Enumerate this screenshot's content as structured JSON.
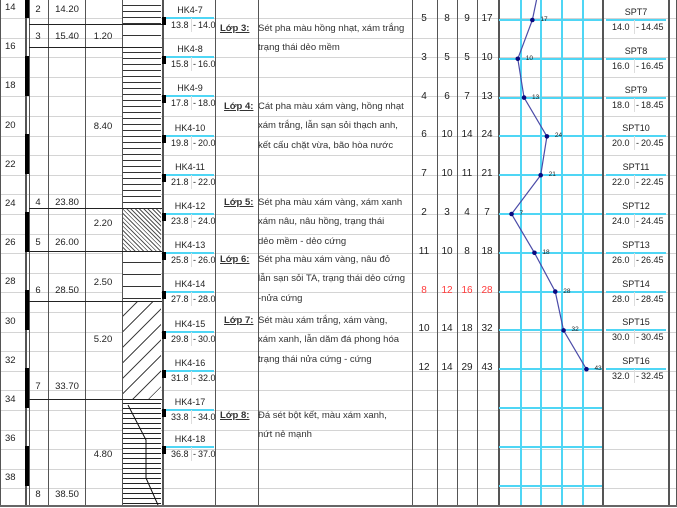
{
  "depth_labels": [
    "14",
    "16",
    "18",
    "20",
    "22",
    "24",
    "26",
    "28",
    "30",
    "32",
    "34",
    "36",
    "38"
  ],
  "layers": [
    {
      "no": "2",
      "bottom": "14.20"
    },
    {
      "no": "3",
      "bottom": "15.40"
    },
    {
      "no": "4",
      "bottom": "23.80"
    },
    {
      "no": "5",
      "bottom": "26.00"
    },
    {
      "no": "6",
      "bottom": "28.50"
    },
    {
      "no": "7",
      "bottom": "33.70"
    },
    {
      "no": "8",
      "bottom": "38.50"
    }
  ],
  "thicknesses": [
    "1.20",
    "8.40",
    "2.20",
    "2.50",
    "5.20",
    "4.80"
  ],
  "samples": [
    {
      "name": "HK4-7",
      "from": "13.8",
      "to": "14.0"
    },
    {
      "name": "HK4-8",
      "from": "15.8",
      "to": "16.0"
    },
    {
      "name": "HK4-9",
      "from": "17.8",
      "to": "18.0"
    },
    {
      "name": "HK4-10",
      "from": "19.8",
      "to": "20.0"
    },
    {
      "name": "HK4-11",
      "from": "21.8",
      "to": "22.0"
    },
    {
      "name": "HK4-12",
      "from": "23.8",
      "to": "24.0"
    },
    {
      "name": "HK4-13",
      "from": "25.8",
      "to": "26.0"
    },
    {
      "name": "HK4-14",
      "from": "27.8",
      "to": "28.0"
    },
    {
      "name": "HK4-15",
      "from": "29.8",
      "to": "30.0"
    },
    {
      "name": "HK4-16",
      "from": "31.8",
      "to": "32.0"
    },
    {
      "name": "HK4-17",
      "from": "33.8",
      "to": "34.0"
    },
    {
      "name": "HK4-18",
      "from": "36.8",
      "to": "37.0"
    }
  ],
  "descriptions": [
    {
      "label": "Lớp 3:",
      "lines": [
        "Sét pha màu hồng nhạt, xám trắng",
        "trạng thái dẻo mềm"
      ]
    },
    {
      "label": "Lớp 4:",
      "lines": [
        "Cát pha màu xám vàng, hồng nhạt",
        "xám trắng, lẫn sạn sỏi thạch anh,",
        "kết cấu chặt vừa, bão hòa nước"
      ]
    },
    {
      "label": "Lớp 5:",
      "lines": [
        "Sét pha màu xám vàng, xám xanh",
        "xám nâu, nâu hồng, trạng thái",
        "dẻo mềm - dẻo cứng"
      ]
    },
    {
      "label": "Lớp 6:",
      "lines": [
        "Sét pha màu xám vàng, nâu đỏ",
        "lẫn sạn sỏi TA, trạng thái dẻo cứng",
        "-nửa cứng"
      ]
    },
    {
      "label": "Lớp 7:",
      "lines": [
        "Sét màu xám trắng, xám vàng,",
        "xám xanh, lẫn dăm đá phong hóa",
        "trạng thái nửa cứng - cứng"
      ]
    },
    {
      "label": "Lớp 8:",
      "lines": [
        "Đá sét bột kết, màu xám xanh,",
        "nứt nẻ mạnh"
      ]
    }
  ],
  "spt": [
    {
      "n1": "5",
      "n2": "8",
      "n3": "9",
      "n": "17",
      "name": "SPT7",
      "from": "14.0",
      "to": "14.45"
    },
    {
      "n1": "3",
      "n2": "5",
      "n3": "5",
      "n": "10",
      "name": "SPT8",
      "from": "16.0",
      "to": "16.45"
    },
    {
      "n1": "4",
      "n2": "6",
      "n3": "7",
      "n": "13",
      "name": "SPT9",
      "from": "18.0",
      "to": "18.45"
    },
    {
      "n1": "6",
      "n2": "10",
      "n3": "14",
      "n": "24",
      "name": "SPT10",
      "from": "20.0",
      "to": "20.45"
    },
    {
      "n1": "7",
      "n2": "10",
      "n3": "11",
      "n": "21",
      "name": "SPT11",
      "from": "22.0",
      "to": "22.45"
    },
    {
      "n1": "2",
      "n2": "3",
      "n3": "4",
      "n": "7",
      "name": "SPT12",
      "from": "24.0",
      "to": "24.45"
    },
    {
      "n1": "11",
      "n2": "10",
      "n3": "8",
      "n": "18",
      "name": "SPT13",
      "from": "26.0",
      "to": "26.45"
    },
    {
      "n1": "8",
      "n2": "12",
      "n3": "16",
      "n": "28",
      "name": "SPT14",
      "from": "28.0",
      "to": "28.45",
      "highlight": true
    },
    {
      "n1": "10",
      "n2": "14",
      "n3": "18",
      "n": "32",
      "name": "SPT15",
      "from": "30.0",
      "to": "30.45"
    },
    {
      "n1": "12",
      "n2": "14",
      "n3": "29",
      "n": "43",
      "name": "SPT16",
      "from": "32.0",
      "to": "32.45"
    }
  ],
  "colors": {
    "grid_accent": "#4fd6f5",
    "spt_line": "#4b4ba8",
    "spt_point": "#0a0a80",
    "highlight": "#ff3b3b"
  }
}
